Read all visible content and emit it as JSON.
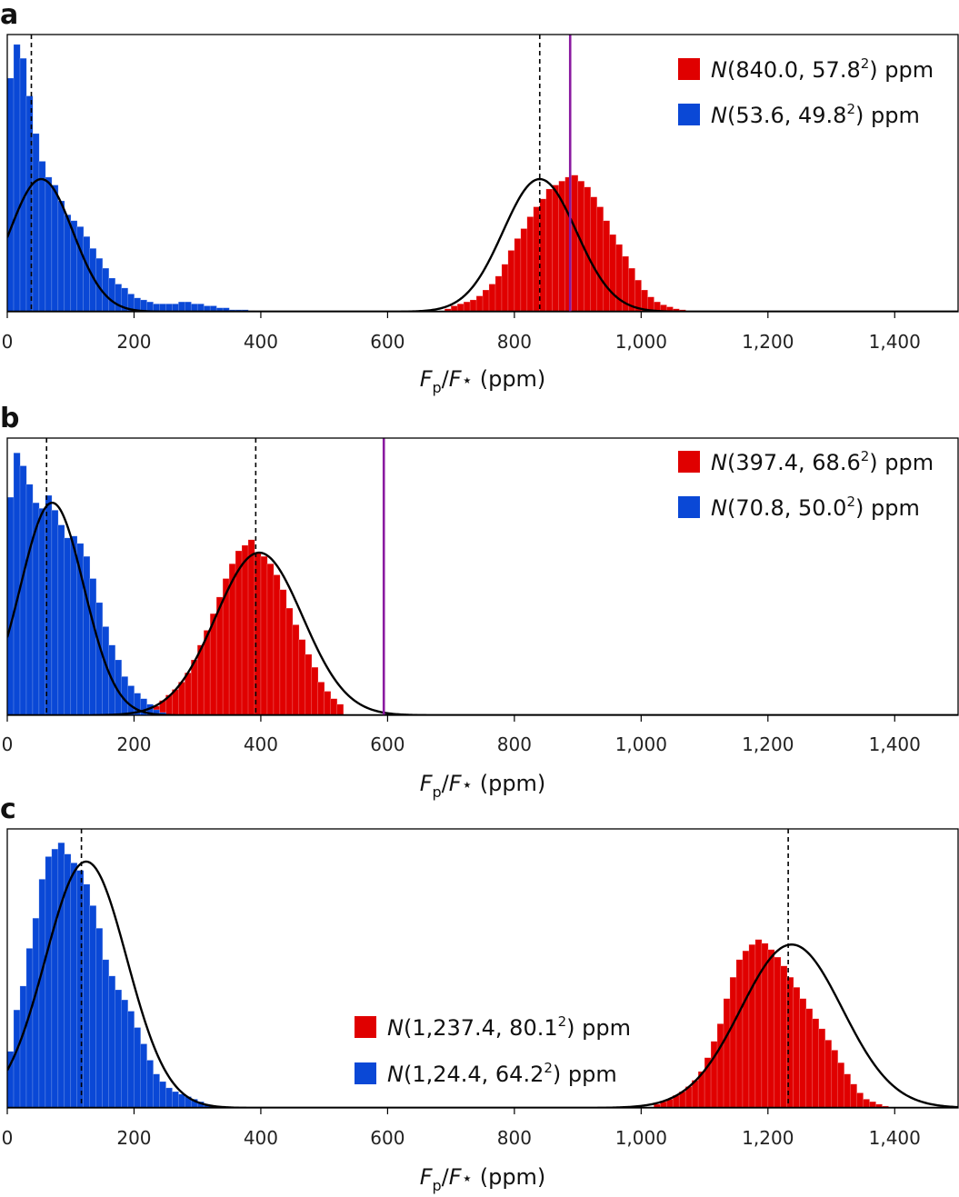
{
  "chart_data": [
    {
      "type": "bar",
      "panel": "a",
      "xlabel": "F_p/F_* (ppm)",
      "xlim": [
        0,
        1500
      ],
      "x_ticks": [
        "0",
        "200",
        "400",
        "600",
        "800",
        "1,000",
        "1,200",
        "1,400"
      ],
      "x_tick_values": [
        0,
        200,
        400,
        600,
        800,
        1000,
        1200,
        1400
      ],
      "bin_width": 10,
      "legend_position": "top-right",
      "series": [
        {
          "name": "N(840.0, 57.8²) ppm",
          "color": "#e00000",
          "kind": "histogram",
          "bins_start": 690,
          "counts": [
            1.5,
            3,
            4,
            5,
            6,
            8,
            11,
            14,
            18,
            24,
            31,
            37,
            42,
            48,
            53,
            57,
            62,
            64,
            66,
            68,
            69,
            66,
            63,
            58,
            53,
            46,
            39,
            34,
            28,
            22,
            16,
            11,
            7.5,
            5,
            3.5,
            2.5,
            1.5,
            1
          ],
          "fit": {
            "mean": 840.0,
            "sd": 57.8,
            "peak": 67
          },
          "dashed_marker": 840.0
        },
        {
          "name": "N(53.6, 49.8²) ppm",
          "color": "#0a48d6",
          "kind": "histogram",
          "bins_start": 0,
          "counts": [
            118,
            135,
            128,
            109,
            90,
            76,
            68,
            64,
            56,
            49,
            46,
            43,
            38,
            32,
            27,
            22,
            17,
            14,
            12,
            9,
            7,
            6,
            5,
            4,
            4,
            4,
            4,
            5,
            5,
            4,
            4,
            3,
            3,
            2,
            2,
            1,
            1,
            1,
            0.5
          ],
          "fit": {
            "mean": 53.6,
            "sd": 49.8,
            "peak": 67
          },
          "dashed_marker": 38
        }
      ],
      "vertical_line": {
        "x": 888,
        "color": "#8a1aa0"
      }
    },
    {
      "type": "bar",
      "panel": "b",
      "xlabel": "F_p/F_* (ppm)",
      "xlim": [
        0,
        1500
      ],
      "x_ticks": [
        "0",
        "200",
        "400",
        "600",
        "800",
        "1,000",
        "1,200",
        "1,400"
      ],
      "x_tick_values": [
        0,
        200,
        400,
        600,
        800,
        1000,
        1200,
        1400
      ],
      "bin_width": 10,
      "legend_position": "top-right",
      "series": [
        {
          "name": "N(397.4, 68.6²) ppm",
          "color": "#e00000",
          "kind": "histogram",
          "bins_start": 230,
          "counts": [
            5,
            8,
            11,
            14,
            18,
            23,
            30,
            38,
            46,
            55,
            64,
            74,
            82,
            89,
            92,
            95,
            88,
            86,
            82,
            76,
            68,
            58,
            49,
            41,
            33,
            26,
            18,
            13,
            9,
            6
          ],
          "fit": {
            "mean": 397.4,
            "sd": 68.6,
            "peak": 88
          },
          "dashed_marker": 392
        },
        {
          "name": "N(70.8, 50.0²) ppm",
          "color": "#0a48d6",
          "kind": "histogram",
          "bins_start": 0,
          "counts": [
            118,
            142,
            135,
            125,
            115,
            112,
            119,
            111,
            103,
            96,
            97,
            93,
            86,
            74,
            61,
            48,
            38,
            30,
            21,
            16,
            12,
            9,
            6,
            3,
            1.5
          ],
          "fit": {
            "mean": 70.8,
            "sd": 50.0,
            "peak": 115
          },
          "dashed_marker": 62
        }
      ],
      "vertical_line": {
        "x": 594,
        "color": "#8a1aa0"
      }
    },
    {
      "type": "bar",
      "panel": "c",
      "xlabel": "F_p/F_* (ppm)",
      "xlim": [
        0,
        1500
      ],
      "x_ticks": [
        "0",
        "200",
        "400",
        "600",
        "800",
        "1,000",
        "1,200",
        "1,400"
      ],
      "x_tick_values": [
        0,
        200,
        400,
        600,
        800,
        1000,
        1200,
        1400
      ],
      "bin_width": 10,
      "legend_position": "center",
      "series": [
        {
          "name": "N(1,237.4, 80.1²) ppm",
          "color": "#e00000",
          "kind": "histogram",
          "bins_start": 1020,
          "counts": [
            3,
            5,
            7,
            10,
            13,
            17,
            22,
            29,
            40,
            53,
            67,
            87,
            104,
            118,
            125,
            130,
            134,
            131,
            126,
            120,
            113,
            104,
            96,
            87,
            79,
            71,
            63,
            54,
            46,
            36,
            27,
            19,
            12,
            7,
            5,
            3,
            1.5
          ],
          "fit": {
            "mean": 1237.4,
            "sd": 80.1,
            "peak": 130
          },
          "dashed_marker": 1232
        },
        {
          "name": "N(1,24.4, 64.2²) ppm",
          "color": "#0a48d6",
          "kind": "histogram",
          "bins_start": 0,
          "counts": [
            45,
            78,
            97,
            127,
            151,
            182,
            200,
            206,
            211,
            202,
            195,
            189,
            178,
            161,
            143,
            118,
            105,
            94,
            86,
            77,
            64,
            51,
            38,
            27,
            21,
            16,
            13,
            11,
            9,
            7,
            5,
            3,
            1.5,
            1,
            0.8
          ],
          "fit": {
            "mean": 124.4,
            "sd": 64.2,
            "peak": 196
          },
          "dashed_marker": 117
        }
      ],
      "vertical_line": null
    }
  ]
}
